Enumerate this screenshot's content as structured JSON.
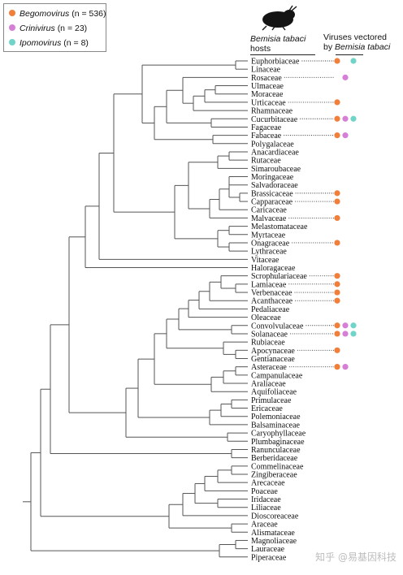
{
  "legend": {
    "items": [
      {
        "name": "Begomovirus",
        "count": "(n = 536)",
        "color": "#f07f3c"
      },
      {
        "name": "Crinivirus",
        "count": "(n = 23)",
        "color": "#d67fd6"
      },
      {
        "name": "Ipomovirus",
        "count": "(n = 8)",
        "color": "#72d4c9"
      }
    ]
  },
  "header": {
    "hosts_line1": "Bemisia tabaci",
    "hosts_line2": "hosts",
    "viruses_line1": "Viruses vectored",
    "viruses_line2_prefix": "by ",
    "viruses_line2_species": "Bemisia tabaci"
  },
  "families": [
    {
      "name": "Euphorbiaceae",
      "viruses": [
        "Begomovirus",
        "Ipomovirus"
      ]
    },
    {
      "name": "Linaceae",
      "viruses": []
    },
    {
      "name": "Rosaceae",
      "viruses": [
        "Crinivirus"
      ]
    },
    {
      "name": "Ulmaceae",
      "viruses": []
    },
    {
      "name": "Moraceae",
      "viruses": []
    },
    {
      "name": "Urticaceae",
      "viruses": [
        "Begomovirus"
      ]
    },
    {
      "name": "Rhamnaceae",
      "viruses": []
    },
    {
      "name": "Cucurbitaceae",
      "viruses": [
        "Begomovirus",
        "Crinivirus",
        "Ipomovirus"
      ]
    },
    {
      "name": "Fagaceae",
      "viruses": []
    },
    {
      "name": "Fabaceae",
      "viruses": [
        "Begomovirus",
        "Crinivirus"
      ]
    },
    {
      "name": "Polygalaceae",
      "viruses": []
    },
    {
      "name": "Anacardiaceae",
      "viruses": []
    },
    {
      "name": "Rutaceae",
      "viruses": []
    },
    {
      "name": "Simaroubaceae",
      "viruses": []
    },
    {
      "name": "Moringaceae",
      "viruses": []
    },
    {
      "name": "Salvadoraceae",
      "viruses": []
    },
    {
      "name": "Brassicaceae",
      "viruses": [
        "Begomovirus"
      ]
    },
    {
      "name": "Capparaceae",
      "viruses": [
        "Begomovirus"
      ]
    },
    {
      "name": "Caricaceae",
      "viruses": []
    },
    {
      "name": "Malvaceae",
      "viruses": [
        "Begomovirus"
      ]
    },
    {
      "name": "Melastomataceae",
      "viruses": []
    },
    {
      "name": "Myrtaceae",
      "viruses": []
    },
    {
      "name": "Onagraceae",
      "viruses": [
        "Begomovirus"
      ]
    },
    {
      "name": "Lythraceae",
      "viruses": []
    },
    {
      "name": "Vitaceae",
      "viruses": []
    },
    {
      "name": "Haloragaceae",
      "viruses": []
    },
    {
      "name": "Scrophulariaceae",
      "viruses": [
        "Begomovirus"
      ]
    },
    {
      "name": "Lamiaceae",
      "viruses": [
        "Begomovirus"
      ]
    },
    {
      "name": "Verbenaceae",
      "viruses": [
        "Begomovirus"
      ]
    },
    {
      "name": "Acanthaceae",
      "viruses": [
        "Begomovirus"
      ]
    },
    {
      "name": "Pedaliaceae",
      "viruses": []
    },
    {
      "name": "Oleaceae",
      "viruses": []
    },
    {
      "name": "Convolvulaceae",
      "viruses": [
        "Begomovirus",
        "Crinivirus",
        "Ipomovirus"
      ]
    },
    {
      "name": "Solanaceae",
      "viruses": [
        "Begomovirus",
        "Crinivirus",
        "Ipomovirus"
      ]
    },
    {
      "name": "Rubiaceae",
      "viruses": []
    },
    {
      "name": "Apocynaceae",
      "viruses": [
        "Begomovirus"
      ]
    },
    {
      "name": "Gentianaceae",
      "viruses": []
    },
    {
      "name": "Asteraceae",
      "viruses": [
        "Begomovirus",
        "Crinivirus"
      ]
    },
    {
      "name": "Campanulaceae",
      "viruses": []
    },
    {
      "name": "Araliaceae",
      "viruses": []
    },
    {
      "name": "Aquifoliaceae",
      "viruses": []
    },
    {
      "name": "Primulaceae",
      "viruses": []
    },
    {
      "name": "Ericaceae",
      "viruses": []
    },
    {
      "name": "Polemoniaceae",
      "viruses": []
    },
    {
      "name": "Balsaminaceae",
      "viruses": []
    },
    {
      "name": "Caryophyllaceae",
      "viruses": []
    },
    {
      "name": "Plumbaginaceae",
      "viruses": []
    },
    {
      "name": "Ranunculaceae",
      "viruses": []
    },
    {
      "name": "Berberidaceae",
      "viruses": []
    },
    {
      "name": "Commelinaceae",
      "viruses": []
    },
    {
      "name": "Zingiberaceae",
      "viruses": []
    },
    {
      "name": "Arecaceae",
      "viruses": []
    },
    {
      "name": "Poaceae",
      "viruses": []
    },
    {
      "name": "Iridaceae",
      "viruses": []
    },
    {
      "name": "Liliaceae",
      "viruses": []
    },
    {
      "name": "Dioscoreaceae",
      "viruses": []
    },
    {
      "name": "Araceae",
      "viruses": []
    },
    {
      "name": "Alismataceae",
      "viruses": []
    },
    {
      "name": "Magnoliaceae",
      "viruses": []
    },
    {
      "name": "Lauraceae",
      "viruses": []
    },
    {
      "name": "Piperaceae",
      "viruses": []
    }
  ],
  "watermark": "知乎 @易基因科技",
  "icons": {
    "whitefly": "whitefly-icon"
  }
}
